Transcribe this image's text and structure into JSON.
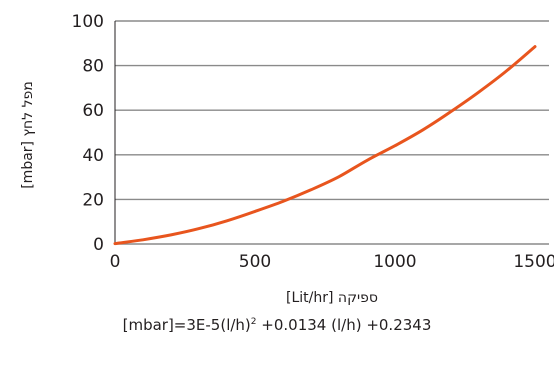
{
  "chart_data": {
    "type": "line",
    "xlabel": "ספיקה [Lit/hr]",
    "ylabel": "מפל לחץ [mbar]",
    "xlim": [
      0,
      1550
    ],
    "ylim": [
      0,
      100
    ],
    "x_ticks": [
      "0",
      "500",
      "1000",
      "1500"
    ],
    "x_tick_values": [
      0,
      500,
      1000,
      1500
    ],
    "y_ticks": [
      "0",
      "20",
      "40",
      "60",
      "80",
      "100"
    ],
    "y_tick_values": [
      0,
      20,
      40,
      60,
      80,
      100
    ],
    "grid": "horizontal",
    "series": [
      {
        "color": "#e8551e",
        "x": [
          0,
          100,
          200,
          300,
          400,
          500,
          600,
          700,
          800,
          900,
          1000,
          1100,
          1200,
          1300,
          1400,
          1500
        ],
        "y": [
          0.2,
          1.9,
          4.1,
          6.9,
          10.4,
          14.6,
          19.1,
          24.3,
          30.2,
          37.5,
          44.1,
          51.2,
          59.4,
          68.2,
          77.8,
          88.5
        ]
      }
    ]
  },
  "formula": {
    "lhs": "[mbar]=3E-5(l/h)",
    "exp": "2",
    "rhs": " +0.0134 (l/h) +0.2343"
  }
}
